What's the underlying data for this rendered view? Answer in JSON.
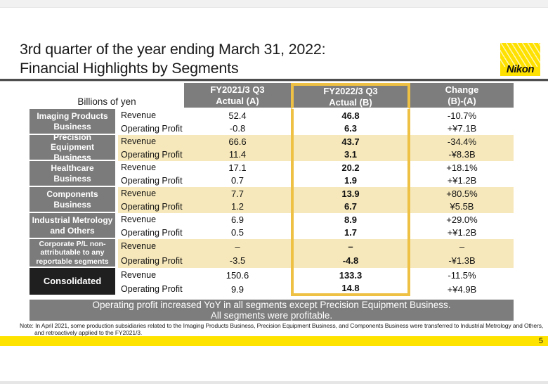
{
  "title": {
    "line1": "3rd quarter of the year ending March 31, 2022:",
    "line2": "Financial Highlights by Segments"
  },
  "logo": {
    "brand": "Nikon"
  },
  "table": {
    "unit_label": "Billions of yen",
    "columns": [
      {
        "l1": "FY2021/3 Q3",
        "l2": "Actual (A)"
      },
      {
        "l1": "FY2022/3 Q3",
        "l2": "Actual (B)"
      },
      {
        "l1": "Change",
        "l2": "(B)-(A)"
      }
    ],
    "rows": [
      {
        "segment": "Imaging Products Business",
        "revenue": {
          "label": "Revenue",
          "a": "52.4",
          "b": "46.8",
          "chg": "-10.7%"
        },
        "profit": {
          "label": "Operating Profit",
          "a": "-0.8",
          "b": "6.3",
          "chg": "+¥7.1B"
        }
      },
      {
        "segment": "Precision Equipment Business",
        "revenue": {
          "label": "Revenue",
          "a": "66.6",
          "b": "43.7",
          "chg": "-34.4%"
        },
        "profit": {
          "label": "Operating Profit",
          "a": "11.4",
          "b": "3.1",
          "chg": "-¥8.3B"
        }
      },
      {
        "segment": "Healthcare Business",
        "revenue": {
          "label": "Revenue",
          "a": "17.1",
          "b": "20.2",
          "chg": "+18.1%"
        },
        "profit": {
          "label": "Operating Profit",
          "a": "0.7",
          "b": "1.9",
          "chg": "+¥1.2B"
        }
      },
      {
        "segment": "Components Business",
        "revenue": {
          "label": "Revenue",
          "a": "7.7",
          "b": "13.9",
          "chg": "+80.5%"
        },
        "profit": {
          "label": "Operating Profit",
          "a": "1.2",
          "b": "6.7",
          "chg": "¥5.5B"
        }
      },
      {
        "segment": "Industrial Metrology and Others",
        "revenue": {
          "label": "Revenue",
          "a": "6.9",
          "b": "8.9",
          "chg": "+29.0%"
        },
        "profit": {
          "label": "Operating Profit",
          "a": "0.5",
          "b": "1.7",
          "chg": "+¥1.2B"
        }
      },
      {
        "segment": "Corporate P/L non-attributable to any reportable segments",
        "revenue": {
          "label": "Revenue",
          "a": "–",
          "b": "–",
          "chg": "–"
        },
        "profit": {
          "label": "Operating Profit",
          "a": "-3.5",
          "b": "-4.8",
          "chg": "-¥1.3B"
        }
      },
      {
        "segment": "Consolidated",
        "revenue": {
          "label": "Revenue",
          "a": "150.6",
          "b": "133.3",
          "chg": "-11.5%"
        },
        "profit": {
          "label": "Operating Profit",
          "a": "9.9",
          "b": "14.8",
          "chg": "+¥4.9B"
        }
      }
    ]
  },
  "banner": {
    "line1": "Operating profit increased YoY in all segments except Precision Equipment Business.",
    "line2": "All segments were profitable."
  },
  "note": {
    "line1": "Note: In April 2021, some production subsidiaries related to the Imaging Products Business, Precision Equipment Business, and Components Business were transferred to Industrial Metrology and Others,",
    "line2": "and retroactively applied to the FY2021/3."
  },
  "footer": {
    "page": "5"
  },
  "colors": {
    "accent_yellow": "#ffe100",
    "column_highlight_border": "#eec043",
    "row_highlight": "#f6e8bb",
    "header_gray": "#7d7d7d",
    "consolidated_black": "#1f1f1f"
  }
}
